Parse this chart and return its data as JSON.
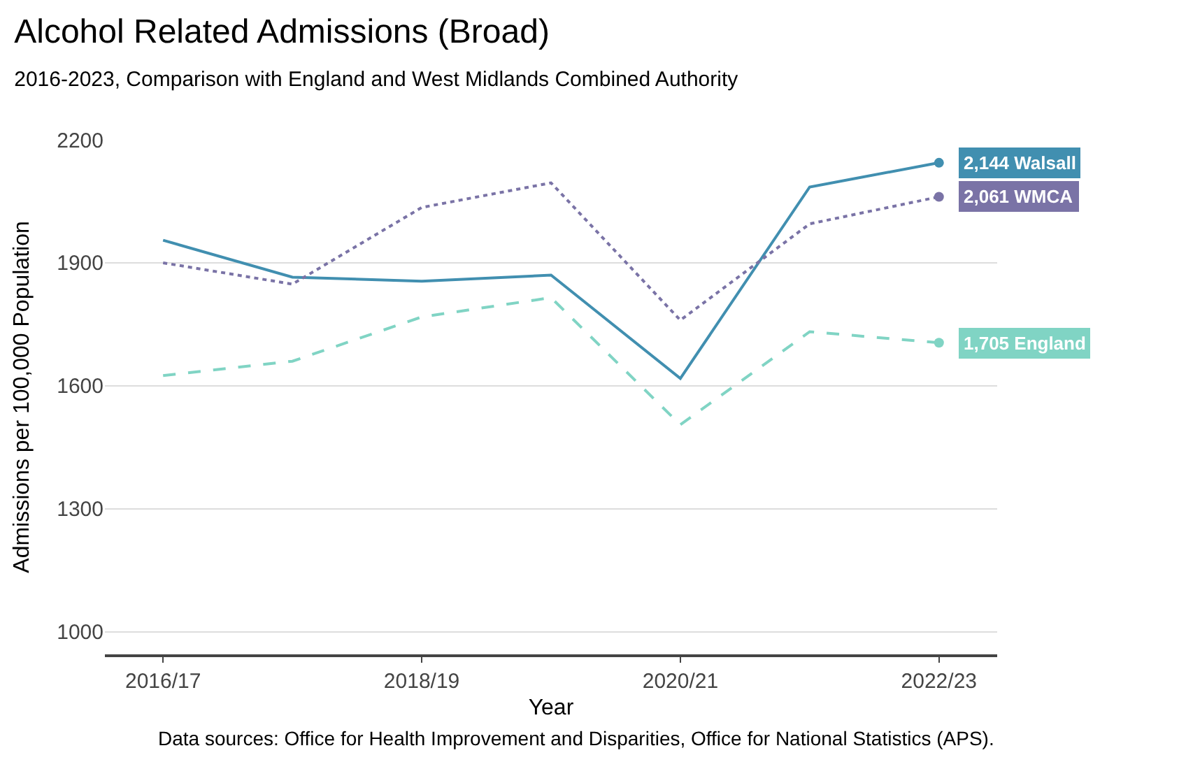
{
  "chart_data": {
    "type": "line",
    "title": "Alcohol Related Admissions (Broad)",
    "subtitle": "2016-2023, Comparison with England and West Midlands Combined Authority",
    "xlabel": "Year",
    "ylabel": "Admissions per 100,000 Population",
    "categories": [
      "2016/17",
      null,
      "2018/19",
      null,
      "2020/21",
      null,
      "2022/23"
    ],
    "series": [
      {
        "name": "Walsall",
        "color": "#418fb0",
        "line_style": "solid",
        "values": [
          1955,
          1865,
          1855,
          1870,
          1618,
          2085,
          2144
        ],
        "value_labels": [
          null,
          null,
          null,
          null,
          null,
          null,
          "2,144"
        ]
      },
      {
        "name": "WMCA",
        "color": "#7a73a6",
        "line_style": "dotted",
        "values": [
          1900,
          1848,
          2035,
          2095,
          1760,
          1995,
          2061
        ],
        "value_labels": [
          null,
          null,
          null,
          null,
          null,
          null,
          "2,061"
        ]
      },
      {
        "name": "England",
        "color": "#80d4c4",
        "line_style": "dashed",
        "values": [
          1625,
          1660,
          1768,
          1815,
          1505,
          1732,
          1705
        ],
        "value_labels": [
          null,
          null,
          null,
          null,
          null,
          null,
          "1,705"
        ]
      }
    ],
    "ylim": [
      945,
      2200
    ],
    "yticks": [
      1000,
      1300,
      1600,
      1900,
      2200
    ],
    "grid": "y",
    "legend": false,
    "annotations": [
      "Data sources: Office for Health Improvement and Disparities, Office for National Statistics (APS)."
    ]
  }
}
